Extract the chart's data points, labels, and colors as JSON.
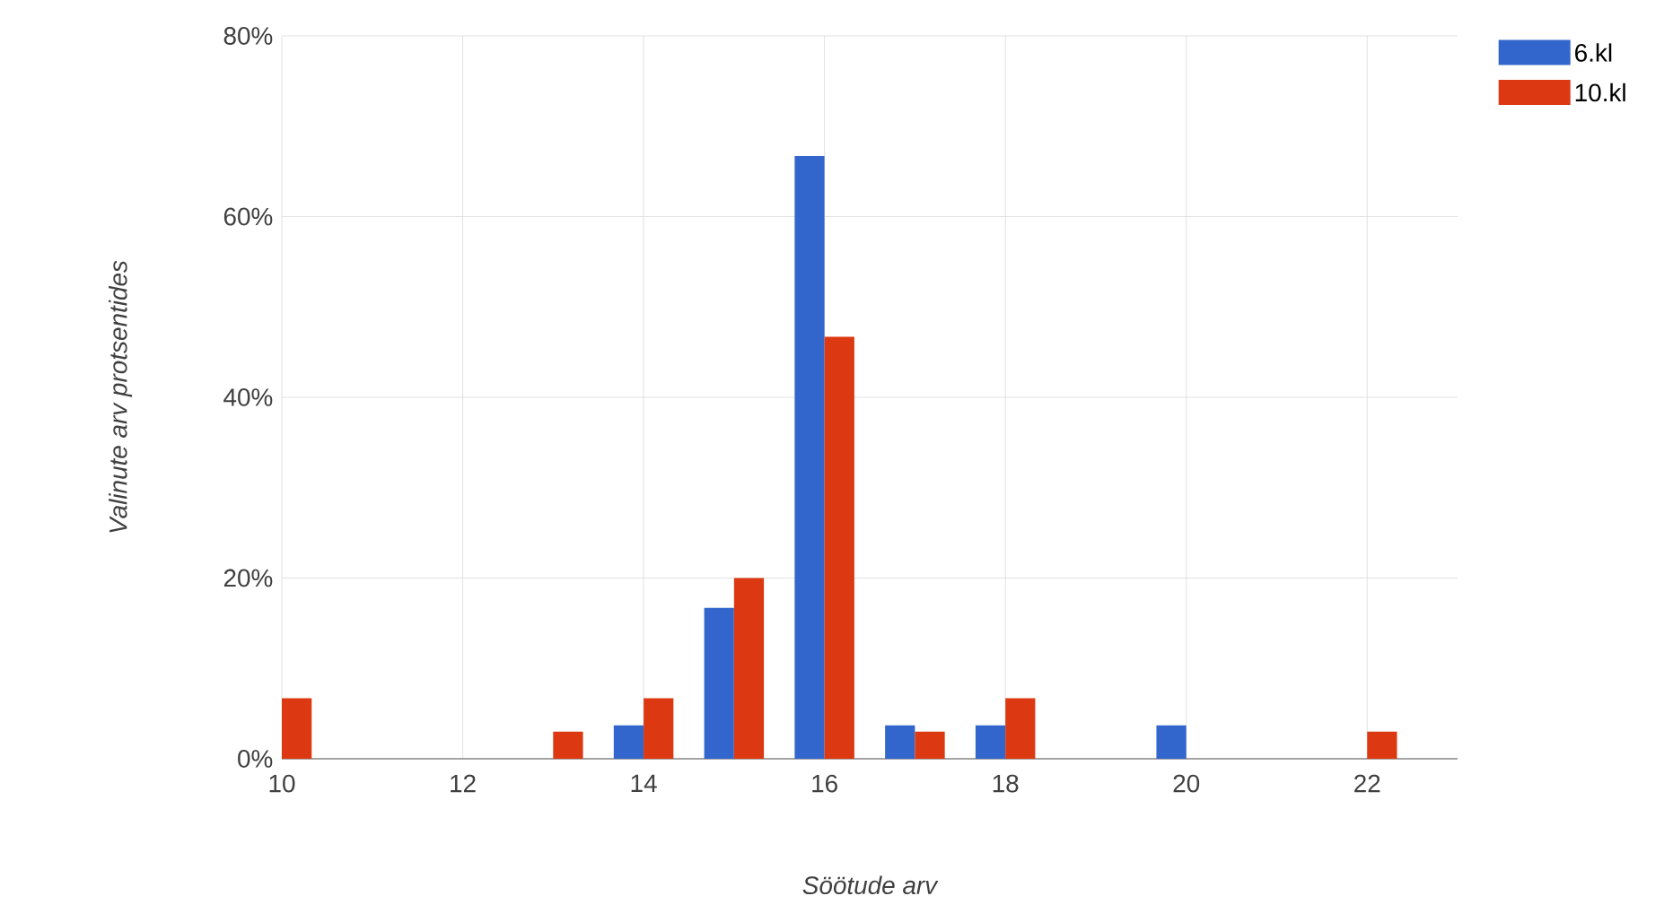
{
  "chart_data": {
    "type": "bar",
    "xlabel": "Söötude arv",
    "ylabel": "Valinute arv protsentides",
    "x": [
      10,
      11,
      12,
      13,
      14,
      15,
      16,
      17,
      18,
      19,
      20,
      21,
      22
    ],
    "series": [
      {
        "name": "6.kl",
        "color": "#3366cc",
        "values": [
          null,
          null,
          null,
          null,
          3.7,
          16.7,
          66.7,
          3.7,
          3.7,
          null,
          3.7,
          null,
          null
        ]
      },
      {
        "name": "10.kl",
        "color": "#dc3912",
        "values": [
          6.7,
          null,
          null,
          3.0,
          6.7,
          20,
          46.7,
          3.0,
          6.7,
          null,
          null,
          null,
          3.0
        ]
      }
    ],
    "xlim": [
      10,
      23
    ],
    "xticks": [
      {
        "value": 10,
        "label": "10"
      },
      {
        "value": 12,
        "label": "12"
      },
      {
        "value": 14,
        "label": "14"
      },
      {
        "value": 16,
        "label": "16"
      },
      {
        "value": 18,
        "label": "18"
      },
      {
        "value": 20,
        "label": "20"
      },
      {
        "value": 22,
        "label": "22"
      }
    ],
    "ylim": [
      0,
      80
    ],
    "yticks": [
      {
        "value": 0,
        "label": "0%"
      },
      {
        "value": 20,
        "label": "20%"
      },
      {
        "value": 40,
        "label": "40%"
      },
      {
        "value": 60,
        "label": "60%"
      },
      {
        "value": 80,
        "label": "80%"
      }
    ],
    "grid": true,
    "legend": "top right"
  }
}
